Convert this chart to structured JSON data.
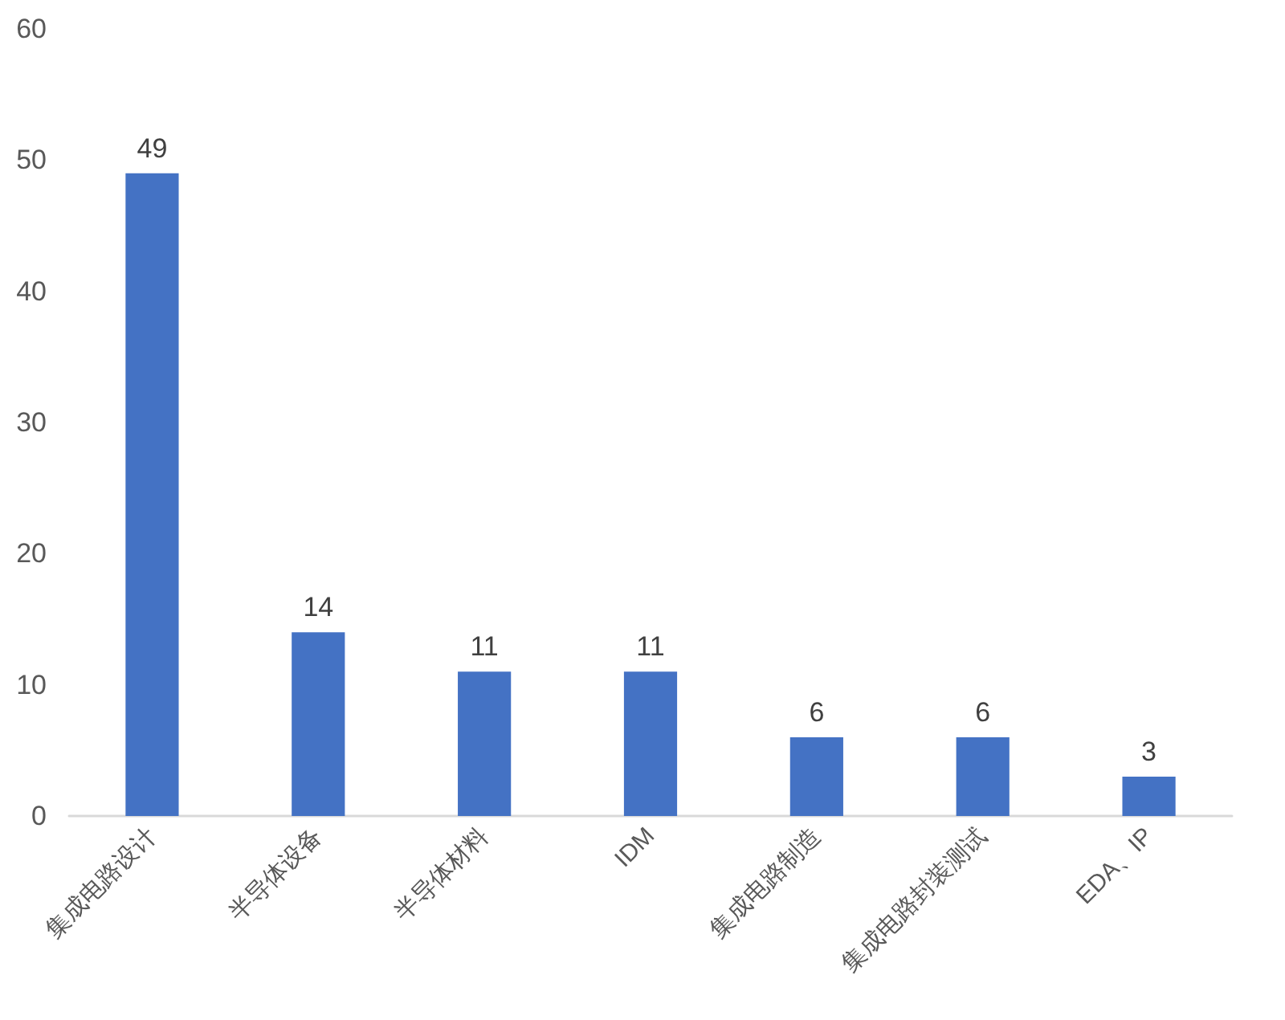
{
  "chart_data": {
    "type": "bar",
    "categories": [
      "集成电路设计",
      "半导体设备",
      "半导体材料",
      "IDM",
      "集成电路制造",
      "集成电路封装测试",
      "EDA、IP"
    ],
    "values": [
      49,
      14,
      11,
      11,
      6,
      6,
      3
    ],
    "color": "#4472c4",
    "ylim": [
      0,
      60
    ],
    "yticks": [
      0,
      10,
      20,
      30,
      40,
      50,
      60
    ],
    "grid": false,
    "data_labels": true
  }
}
